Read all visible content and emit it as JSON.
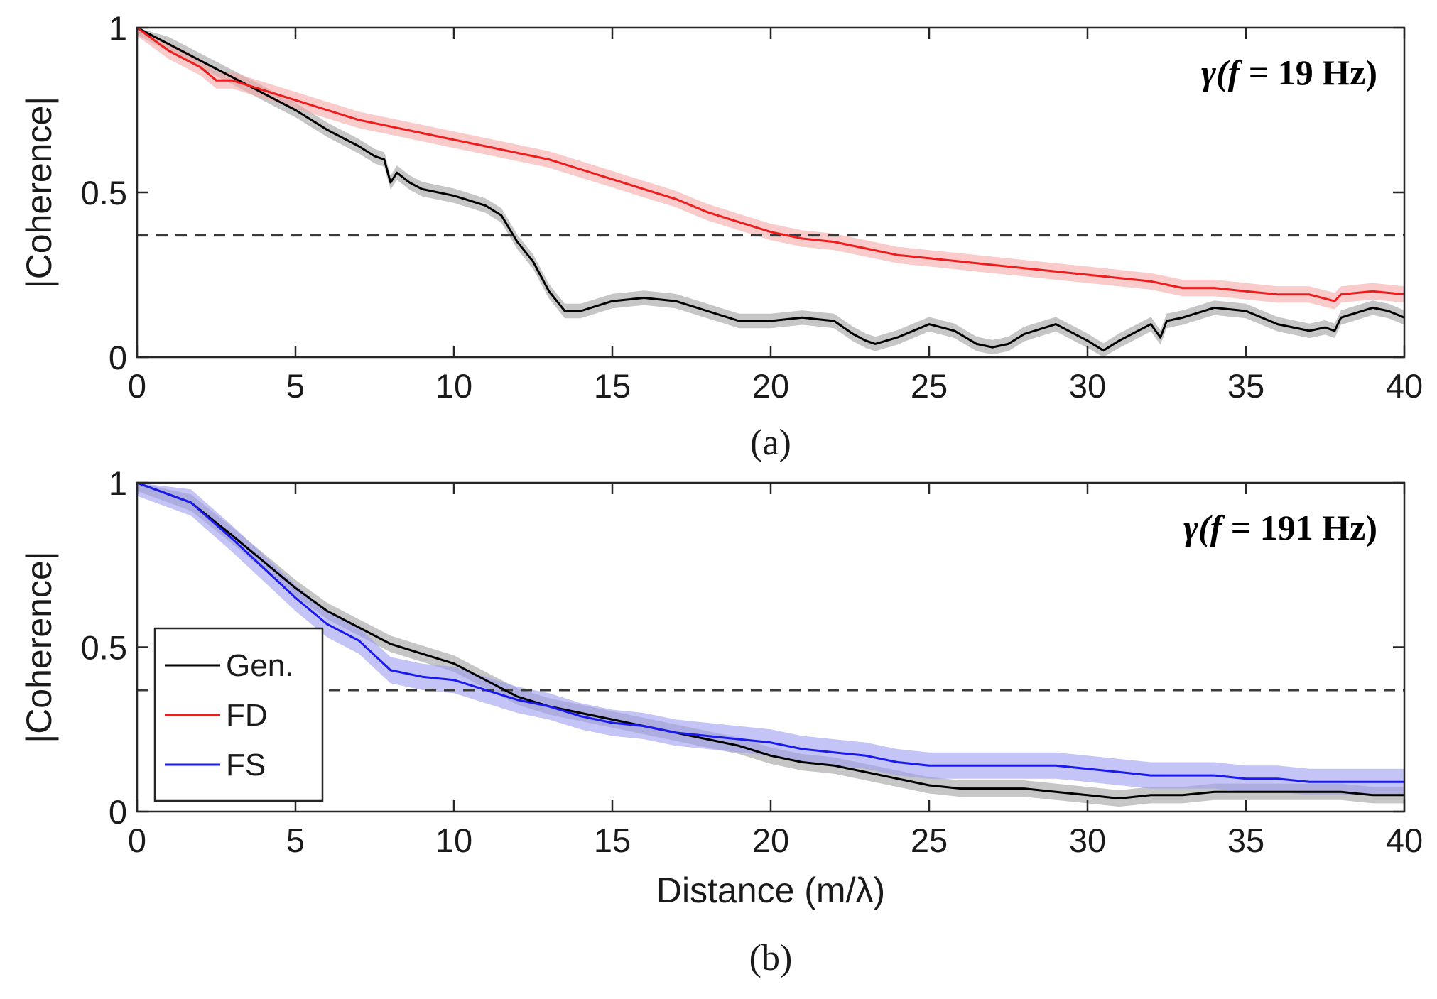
{
  "chart_data": [
    {
      "type": "line",
      "panel": "(a)",
      "annotation": {
        "prefix": "γ(",
        "var": "f",
        "suffix": " = 19 Hz)"
      },
      "ylabel": "|Coherence|",
      "xlabel": "",
      "xlim": [
        0,
        40
      ],
      "ylim": [
        0,
        1
      ],
      "xticks": [
        "0",
        "5",
        "10",
        "15",
        "20",
        "25",
        "30",
        "35",
        "40"
      ],
      "yticks": [
        "0",
        "0.5",
        "1"
      ],
      "reference_line": {
        "y": 0.37,
        "style": "dashed"
      },
      "series": [
        {
          "name": "Gen.",
          "color": "#000000",
          "band_color": "#a0a0a0",
          "band_halfwidth": 0.022,
          "x": [
            0,
            1,
            2,
            2.6,
            3,
            4,
            5,
            6,
            7,
            7.5,
            7.8,
            8.0,
            8.2,
            8.6,
            9,
            10,
            11,
            11.5,
            12,
            12.5,
            13,
            13.5,
            14,
            15,
            16,
            17,
            18,
            19,
            20,
            21,
            22,
            22.6,
            23,
            23.3,
            24,
            25,
            25.8,
            26.5,
            27,
            27.5,
            28,
            29,
            30,
            30.5,
            31,
            32,
            32.3,
            32.5,
            33,
            34,
            35,
            36,
            37,
            37.5,
            37.8,
            38,
            39,
            39.5,
            40
          ],
          "values": [
            1.0,
            0.95,
            0.9,
            0.87,
            0.85,
            0.8,
            0.75,
            0.69,
            0.64,
            0.61,
            0.6,
            0.53,
            0.56,
            0.53,
            0.51,
            0.49,
            0.46,
            0.43,
            0.35,
            0.29,
            0.2,
            0.14,
            0.14,
            0.17,
            0.18,
            0.17,
            0.14,
            0.11,
            0.11,
            0.12,
            0.11,
            0.07,
            0.05,
            0.04,
            0.06,
            0.1,
            0.08,
            0.04,
            0.03,
            0.04,
            0.07,
            0.1,
            0.05,
            0.02,
            0.05,
            0.1,
            0.06,
            0.11,
            0.12,
            0.15,
            0.14,
            0.1,
            0.08,
            0.09,
            0.08,
            0.12,
            0.15,
            0.14,
            0.12
          ]
        },
        {
          "name": "FD",
          "color": "#ee1c1c",
          "band_color": "#f5a8a8",
          "band_halfwidth": 0.025,
          "x": [
            0,
            1,
            2,
            2.5,
            3,
            4,
            5,
            6,
            7,
            8,
            9,
            10,
            11,
            12,
            13,
            14,
            15,
            16,
            17,
            18,
            19,
            20,
            21,
            22,
            23,
            24,
            25,
            26,
            27,
            28,
            29,
            30,
            31,
            32,
            33,
            34,
            35,
            36,
            37,
            37.8,
            38,
            39,
            40
          ],
          "values": [
            1.0,
            0.93,
            0.88,
            0.84,
            0.84,
            0.81,
            0.78,
            0.75,
            0.72,
            0.7,
            0.68,
            0.66,
            0.64,
            0.62,
            0.6,
            0.57,
            0.54,
            0.51,
            0.48,
            0.44,
            0.41,
            0.38,
            0.36,
            0.35,
            0.33,
            0.31,
            0.3,
            0.29,
            0.28,
            0.27,
            0.26,
            0.25,
            0.24,
            0.23,
            0.21,
            0.21,
            0.2,
            0.19,
            0.19,
            0.17,
            0.19,
            0.2,
            0.19
          ]
        }
      ]
    },
    {
      "type": "line",
      "panel": "(b)",
      "annotation": {
        "prefix": "γ(",
        "var": "f",
        "suffix": " = 191 Hz)"
      },
      "ylabel": "|Coherence|",
      "xlabel": "Distance (m/λ)",
      "xlim": [
        0,
        40
      ],
      "ylim": [
        0,
        1
      ],
      "xticks": [
        "0",
        "5",
        "10",
        "15",
        "20",
        "25",
        "30",
        "35",
        "40"
      ],
      "yticks": [
        "0",
        "0.5",
        "1"
      ],
      "reference_line": {
        "y": 0.37,
        "style": "dashed"
      },
      "legend": {
        "position": "bottom-left",
        "entries": [
          "Gen.",
          "FD",
          "FS"
        ],
        "colors": [
          "#000000",
          "#ee1c1c",
          "#1a1aee"
        ]
      },
      "series": [
        {
          "name": "Gen.",
          "color": "#000000",
          "band_color": "#a0a0a0",
          "band_halfwidth": 0.025,
          "x": [
            0,
            1.7,
            3,
            4,
            5,
            6,
            7,
            8,
            9,
            10,
            11,
            12,
            13,
            14,
            15,
            16,
            17,
            18,
            19,
            20,
            21,
            22,
            23,
            24,
            25,
            26,
            27,
            28,
            29,
            30,
            31,
            32,
            33,
            34,
            35,
            36,
            37,
            38,
            39,
            40
          ],
          "values": [
            1.0,
            0.94,
            0.84,
            0.76,
            0.68,
            0.61,
            0.56,
            0.51,
            0.48,
            0.45,
            0.4,
            0.35,
            0.32,
            0.3,
            0.28,
            0.26,
            0.24,
            0.22,
            0.2,
            0.17,
            0.15,
            0.14,
            0.12,
            0.1,
            0.08,
            0.07,
            0.07,
            0.07,
            0.06,
            0.05,
            0.04,
            0.05,
            0.05,
            0.06,
            0.06,
            0.06,
            0.06,
            0.06,
            0.05,
            0.05
          ]
        },
        {
          "name": "FS",
          "color": "#1a1aee",
          "band_color": "#9c9cf2",
          "band_halfwidth": 0.04,
          "x": [
            0,
            1.7,
            3,
            4,
            5,
            6,
            7,
            8,
            9,
            10,
            11,
            12,
            13,
            14,
            15,
            16,
            17,
            18,
            19,
            20,
            21,
            22,
            23,
            24,
            25,
            26,
            27,
            28,
            29,
            30,
            31,
            32,
            33,
            34,
            35,
            36,
            37,
            38,
            39,
            40
          ],
          "values": [
            1.0,
            0.94,
            0.83,
            0.74,
            0.65,
            0.57,
            0.52,
            0.43,
            0.41,
            0.4,
            0.37,
            0.34,
            0.32,
            0.29,
            0.27,
            0.26,
            0.24,
            0.23,
            0.22,
            0.21,
            0.19,
            0.18,
            0.17,
            0.15,
            0.14,
            0.14,
            0.14,
            0.14,
            0.14,
            0.13,
            0.12,
            0.11,
            0.11,
            0.11,
            0.1,
            0.1,
            0.09,
            0.09,
            0.09,
            0.09
          ]
        }
      ]
    }
  ]
}
